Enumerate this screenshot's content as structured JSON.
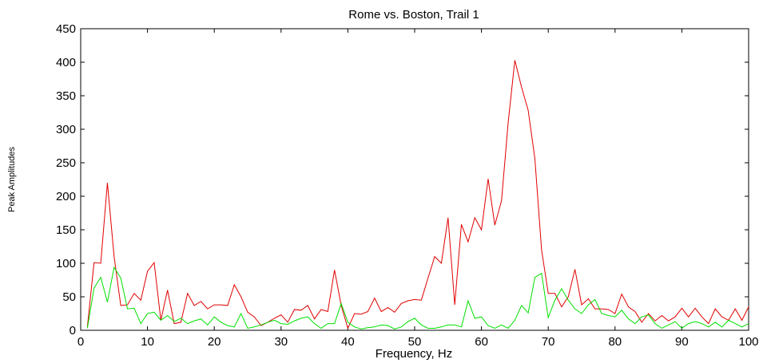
{
  "chart_data": {
    "type": "line",
    "title": "Rome vs. Boston, Trail 1",
    "xlabel": "Frequency, Hz",
    "ylabel": "Peak Amplitudes",
    "xlim": [
      0,
      100
    ],
    "ylim": [
      0,
      450
    ],
    "xticks": [
      "0",
      "10",
      "20",
      "30",
      "40",
      "50",
      "60",
      "70",
      "80",
      "90",
      "100"
    ],
    "yticks": [
      "0",
      "50",
      "100",
      "150",
      "200",
      "250",
      "300",
      "350",
      "400",
      "450"
    ],
    "grid": false,
    "x": [
      1,
      2,
      3,
      4,
      5,
      6,
      7,
      8,
      9,
      10,
      11,
      12,
      13,
      14,
      15,
      16,
      17,
      18,
      19,
      20,
      21,
      22,
      23,
      24,
      25,
      26,
      27,
      28,
      29,
      30,
      31,
      32,
      33,
      34,
      35,
      36,
      37,
      38,
      39,
      40,
      41,
      42,
      43,
      44,
      45,
      46,
      47,
      48,
      49,
      50,
      51,
      52,
      53,
      54,
      55,
      56,
      57,
      58,
      59,
      60,
      61,
      62,
      63,
      64,
      65,
      66,
      67,
      68,
      69,
      70,
      71,
      72,
      73,
      74,
      75,
      76,
      77,
      78,
      79,
      80,
      81,
      82,
      83,
      84,
      85,
      86,
      87,
      88,
      89,
      90,
      91,
      92,
      93,
      94,
      95,
      96,
      97,
      98,
      99,
      100
    ],
    "series": [
      {
        "color": "#e00000",
        "values": [
          5,
          101,
          100,
          220,
          110,
          37,
          38,
          55,
          45,
          88,
          101,
          15,
          60,
          10,
          12,
          55,
          37,
          43,
          32,
          38,
          38,
          37,
          68,
          50,
          27,
          20,
          7,
          12,
          18,
          23,
          12,
          31,
          30,
          37,
          17,
          31,
          28,
          90,
          37,
          3,
          25,
          24,
          28,
          48,
          28,
          34,
          27,
          40,
          44,
          46,
          45,
          78,
          110,
          100,
          168,
          38,
          158,
          132,
          168,
          150,
          226,
          157,
          193,
          310,
          403,
          363,
          328,
          256,
          120,
          55,
          55,
          35,
          50,
          91,
          38,
          47,
          32,
          32,
          31,
          25,
          54,
          35,
          28,
          12,
          25,
          14,
          22,
          14,
          20,
          33,
          20,
          33,
          20,
          10,
          32,
          20,
          15,
          32,
          15,
          35
        ]
      },
      {
        "color": "#00e000",
        "values": [
          3,
          63,
          79,
          42,
          94,
          78,
          32,
          33,
          10,
          25,
          27,
          15,
          22,
          13,
          18,
          10,
          14,
          17,
          8,
          20,
          12,
          7,
          5,
          25,
          3,
          5,
          8,
          12,
          15,
          10,
          9,
          14,
          18,
          20,
          10,
          3,
          10,
          10,
          40,
          12,
          5,
          2,
          4,
          5,
          8,
          7,
          2,
          5,
          13,
          18,
          8,
          3,
          3,
          5,
          8,
          8,
          5,
          44,
          18,
          20,
          7,
          3,
          8,
          3,
          15,
          37,
          26,
          79,
          85,
          19,
          45,
          62,
          45,
          32,
          25,
          38,
          46,
          25,
          22,
          20,
          30,
          17,
          10,
          20,
          23,
          10,
          3,
          8,
          13,
          3,
          10,
          13,
          10,
          5,
          12,
          5,
          15,
          10,
          5,
          10
        ]
      }
    ]
  }
}
